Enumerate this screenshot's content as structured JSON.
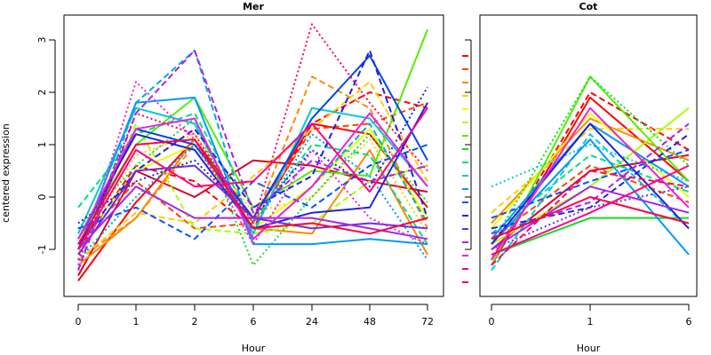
{
  "ylabel": "centered expression",
  "colors": [
    "#ff0000",
    "#ff4400",
    "#ff8800",
    "#ffcc00",
    "#eeff00",
    "#aaff00",
    "#55ee00",
    "#11dd22",
    "#00dd88",
    "#00cccc",
    "#0099ff",
    "#0055ff",
    "#2222dd",
    "#6633dd",
    "#aa22ee",
    "#ee22dd",
    "#ff0088",
    "#ff0044"
  ],
  "chart_data": [
    {
      "type": "line",
      "title": "Mer",
      "xlabel": "Hour",
      "categories": [
        "0",
        "1",
        "2",
        "6",
        "24",
        "48",
        "72"
      ],
      "ylim": [
        -2,
        3.5
      ],
      "yticks": [
        "-1",
        "0",
        "1",
        "2",
        "3"
      ],
      "series": [
        {
          "values": [
            -1.6,
            -0.1,
            1.1,
            -0.4,
            1.4,
            1.2,
            -0.2
          ],
          "color": "#ff0000",
          "dash": "solid"
        },
        {
          "values": [
            -1.0,
            0.6,
            0.3,
            -0.6,
            1.4,
            2.0,
            1.7
          ],
          "color": "#ff0000",
          "dash": "dashed"
        },
        {
          "values": [
            -1.5,
            0.5,
            0.0,
            0.7,
            0.6,
            0.3,
            0.1
          ],
          "color": "#dd0022",
          "dash": "solid"
        },
        {
          "values": [
            -0.9,
            0.3,
            -0.6,
            -0.5,
            1.3,
            1.4,
            1.8
          ],
          "color": "#ff4400",
          "dash": "dashed"
        },
        {
          "values": [
            -1.2,
            -0.4,
            1.0,
            -0.5,
            2.3,
            1.7,
            -0.6
          ],
          "color": "#ff8800",
          "dash": "dashed"
        },
        {
          "values": [
            -1.3,
            -0.4,
            1.1,
            -0.6,
            -0.7,
            0.9,
            -1.1
          ],
          "color": "#ff8800",
          "dash": "solid"
        },
        {
          "values": [
            -1.0,
            0.8,
            1.2,
            -0.3,
            0.0,
            1.1,
            -0.7
          ],
          "color": "#ffcc00",
          "dash": "dotted"
        },
        {
          "values": [
            -1.2,
            -0.3,
            -0.5,
            0.4,
            1.3,
            2.2,
            0.3
          ],
          "color": "#ffcc00",
          "dash": "dashed"
        },
        {
          "values": [
            -0.9,
            0.5,
            1.0,
            -0.6,
            0.2,
            1.3,
            -0.4
          ],
          "color": "#eeff00",
          "dash": "solid"
        },
        {
          "values": [
            -1.1,
            1.4,
            -0.6,
            -0.7,
            -0.5,
            0.3,
            0.6
          ],
          "color": "#aaff00",
          "dash": "dashed"
        },
        {
          "values": [
            -0.8,
            1.0,
            1.9,
            -0.2,
            0.5,
            0.4,
            3.2
          ],
          "color": "#55ee00",
          "dash": "solid"
        },
        {
          "values": [
            -0.6,
            0.6,
            1.5,
            -1.3,
            0.0,
            1.2,
            -0.1
          ],
          "color": "#11dd22",
          "dash": "dotted"
        },
        {
          "values": [
            -0.2,
            1.2,
            1.6,
            -0.5,
            1.0,
            0.8,
            -0.9
          ],
          "color": "#00dd88",
          "dash": "dashed"
        },
        {
          "values": [
            -0.7,
            1.7,
            1.4,
            -0.7,
            1.7,
            1.5,
            0.2
          ],
          "color": "#00cccc",
          "dash": "solid"
        },
        {
          "values": [
            -1.4,
            1.8,
            2.8,
            -0.8,
            0.2,
            1.4,
            -0.5
          ],
          "color": "#00aadd",
          "dash": "dashed"
        },
        {
          "values": [
            -1.0,
            1.8,
            1.9,
            -0.9,
            -0.9,
            -0.8,
            -0.9
          ],
          "color": "#0099ff",
          "dash": "solid"
        },
        {
          "values": [
            -1.2,
            0.0,
            1.0,
            -0.6,
            1.2,
            0.4,
            -1.2
          ],
          "color": "#0099ff",
          "dash": "dotted"
        },
        {
          "values": [
            -0.6,
            -0.2,
            -0.8,
            0.3,
            -0.2,
            0.6,
            1.0
          ],
          "color": "#0055ff",
          "dash": "dashed"
        },
        {
          "values": [
            -1.0,
            1.3,
            1.0,
            -0.4,
            1.5,
            2.7,
            0.7
          ],
          "color": "#0044ee",
          "dash": "solid"
        },
        {
          "values": [
            -0.9,
            0.5,
            1.3,
            -0.2,
            0.4,
            2.8,
            -0.4
          ],
          "color": "#2222dd",
          "dash": "dashed"
        },
        {
          "values": [
            -0.5,
            0.3,
            0.7,
            -0.4,
            0.9,
            0.2,
            2.1
          ],
          "color": "#2222dd",
          "dash": "dotted"
        },
        {
          "values": [
            -0.8,
            1.2,
            0.9,
            -0.6,
            -0.3,
            -0.2,
            1.8
          ],
          "color": "#2222dd",
          "dash": "solid"
        },
        {
          "values": [
            -1.1,
            0.5,
            0.6,
            -0.4,
            -0.6,
            -0.5,
            -0.6
          ],
          "color": "#6633dd",
          "dash": "solid"
        },
        {
          "values": [
            -1.4,
            1.6,
            2.8,
            -0.3,
            0.7,
            0.3,
            0.6
          ],
          "color": "#aa22ee",
          "dash": "dashed"
        },
        {
          "values": [
            -1.0,
            0.2,
            -0.4,
            -0.4,
            -0.4,
            -0.6,
            -0.8
          ],
          "color": "#aa22ee",
          "dash": "solid"
        },
        {
          "values": [
            -0.8,
            1.3,
            1.5,
            -0.8,
            0.2,
            1.6,
            0.2
          ],
          "color": "#ee22dd",
          "dash": "solid"
        },
        {
          "values": [
            -1.3,
            2.2,
            1.1,
            -0.9,
            0.9,
            -0.4,
            -0.9
          ],
          "color": "#ee22dd",
          "dash": "dotted"
        },
        {
          "values": [
            -1.0,
            0.9,
            0.2,
            0.3,
            1.4,
            0.1,
            1.7
          ],
          "color": "#ff0088",
          "dash": "solid"
        },
        {
          "values": [
            -1.2,
            1.6,
            1.2,
            -0.5,
            3.3,
            1.8,
            0.5
          ],
          "color": "#ff0066",
          "dash": "dotted"
        },
        {
          "values": [
            -0.9,
            1.0,
            1.1,
            -0.6,
            -0.5,
            -0.7,
            -0.4
          ],
          "color": "#ff0044",
          "dash": "solid"
        }
      ]
    },
    {
      "type": "line",
      "title": "Cot",
      "xlabel": "Hour",
      "categories": [
        "0",
        "1",
        "6"
      ],
      "ylim": [
        -2,
        3.5
      ],
      "series": [
        {
          "values": [
            -1.3,
            1.9,
            0.3
          ],
          "color": "#ff0000",
          "dash": "solid"
        },
        {
          "values": [
            -1.2,
            2.0,
            0.9
          ],
          "color": "#ff0000",
          "dash": "dashed"
        },
        {
          "values": [
            -1.0,
            0.5,
            0.8
          ],
          "color": "#dd0022",
          "dash": "solid"
        },
        {
          "values": [
            -0.8,
            0.6,
            -0.1
          ],
          "color": "#ff4400",
          "dash": "dashed"
        },
        {
          "values": [
            -0.5,
            1.5,
            0.7
          ],
          "color": "#ff8800",
          "dash": "solid"
        },
        {
          "values": [
            -0.3,
            1.3,
            1.3
          ],
          "color": "#ffcc00",
          "dash": "dashed"
        },
        {
          "values": [
            -0.6,
            1.6,
            0.0
          ],
          "color": "#eeff00",
          "dash": "solid"
        },
        {
          "values": [
            -0.9,
            0.2,
            1.7
          ],
          "color": "#aaff00",
          "dash": "solid"
        },
        {
          "values": [
            -1.3,
            2.3,
            0.3
          ],
          "color": "#55ee00",
          "dash": "solid"
        },
        {
          "values": [
            -1.1,
            -0.4,
            -0.4
          ],
          "color": "#11dd22",
          "dash": "solid"
        },
        {
          "values": [
            -0.9,
            2.3,
            0.6
          ],
          "color": "#11dd22",
          "dash": "dotted"
        },
        {
          "values": [
            -0.7,
            0.8,
            0.1
          ],
          "color": "#00dd88",
          "dash": "dashed"
        },
        {
          "values": [
            0.2,
            1.0,
            0.3
          ],
          "color": "#00cccc",
          "dash": "dotted"
        },
        {
          "values": [
            -1.4,
            1.2,
            -0.6
          ],
          "color": "#00cccc",
          "dash": "dashed"
        },
        {
          "values": [
            -0.8,
            1.4,
            0.2
          ],
          "color": "#0099ff",
          "dash": "solid"
        },
        {
          "values": [
            -0.9,
            1.1,
            -1.1
          ],
          "color": "#0099ff",
          "dash": "solid"
        },
        {
          "values": [
            -0.4,
            0.3,
            0.9
          ],
          "color": "#0055ff",
          "dash": "dashed"
        },
        {
          "values": [
            -0.9,
            1.4,
            -0.6
          ],
          "color": "#2222dd",
          "dash": "solid"
        },
        {
          "values": [
            -0.6,
            -0.2,
            1.2
          ],
          "color": "#2222dd",
          "dash": "dashed"
        },
        {
          "values": [
            -1.0,
            -0.2,
            0.2
          ],
          "color": "#6633dd",
          "dash": "dotted"
        },
        {
          "values": [
            -0.7,
            -0.1,
            1.4
          ],
          "color": "#aa22ee",
          "dash": "dashed"
        },
        {
          "values": [
            -1.0,
            0.2,
            -0.3
          ],
          "color": "#aa22ee",
          "dash": "solid"
        },
        {
          "values": [
            -1.2,
            1.7,
            -0.2
          ],
          "color": "#ee22dd",
          "dash": "solid"
        },
        {
          "values": [
            -1.1,
            -0.3,
            0.6
          ],
          "color": "#ff0088",
          "dash": "solid"
        },
        {
          "values": [
            -1.3,
            0.5,
            0.2
          ],
          "color": "#ff0066",
          "dash": "dashed"
        },
        {
          "values": [
            -0.8,
            0.0,
            -0.5
          ],
          "color": "#ff0044",
          "dash": "solid"
        }
      ]
    }
  ]
}
